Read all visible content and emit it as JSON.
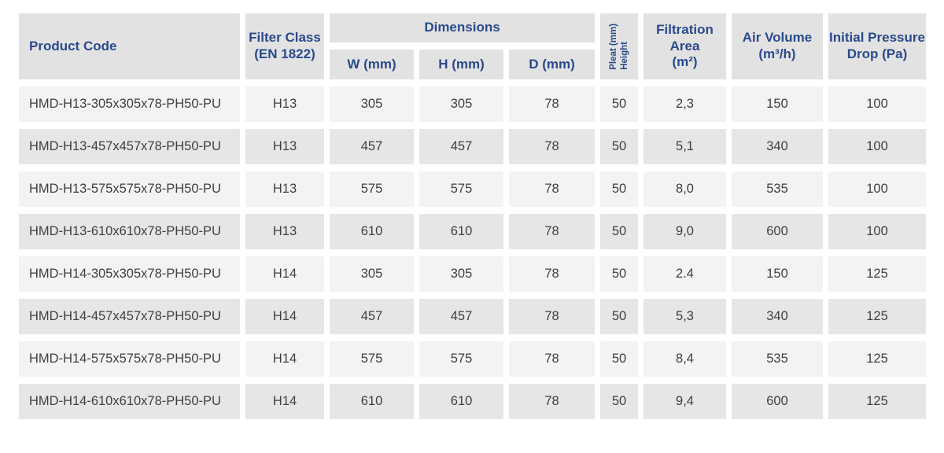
{
  "table": {
    "header": {
      "product_code": "Product Code",
      "filter_class_lines": [
        "Filter Class",
        "(EN 1822)"
      ],
      "dimensions_group": "Dimensions",
      "dim_w": "W (mm)",
      "dim_h": "H (mm)",
      "dim_d": "D (mm)",
      "pleat_lines": [
        "Pleat (mm)",
        "Height"
      ],
      "filtration_area_lines": [
        "Filtration",
        "Area",
        "(m²)"
      ],
      "air_volume_lines": [
        "Air Volume",
        "(m³/h)"
      ],
      "initial_pressure_lines": [
        "Initial Pressure",
        "Drop (Pa)"
      ]
    },
    "rows": [
      {
        "product_code": "HMD-H13-305x305x78-PH50-PU",
        "filter_class": "H13",
        "w": "305",
        "h": "305",
        "d": "78",
        "pleat_height": "50",
        "filtration_area": "2,3",
        "air_volume": "150",
        "initial_pressure_drop": "100"
      },
      {
        "product_code": "HMD-H13-457x457x78-PH50-PU",
        "filter_class": "H13",
        "w": "457",
        "h": "457",
        "d": "78",
        "pleat_height": "50",
        "filtration_area": "5,1",
        "air_volume": "340",
        "initial_pressure_drop": "100"
      },
      {
        "product_code": "HMD-H13-575x575x78-PH50-PU",
        "filter_class": "H13",
        "w": "575",
        "h": "575",
        "d": "78",
        "pleat_height": "50",
        "filtration_area": "8,0",
        "air_volume": "535",
        "initial_pressure_drop": "100"
      },
      {
        "product_code": "HMD-H13-610x610x78-PH50-PU",
        "filter_class": "H13",
        "w": "610",
        "h": "610",
        "d": "78",
        "pleat_height": "50",
        "filtration_area": "9,0",
        "air_volume": "600",
        "initial_pressure_drop": "100"
      },
      {
        "product_code": "HMD-H14-305x305x78-PH50-PU",
        "filter_class": "H14",
        "w": "305",
        "h": "305",
        "d": "78",
        "pleat_height": "50",
        "filtration_area": "2.4",
        "air_volume": "150",
        "initial_pressure_drop": "125"
      },
      {
        "product_code": "HMD-H14-457x457x78-PH50-PU",
        "filter_class": "H14",
        "w": "457",
        "h": "457",
        "d": "78",
        "pleat_height": "50",
        "filtration_area": "5,3",
        "air_volume": "340",
        "initial_pressure_drop": "125"
      },
      {
        "product_code": "HMD-H14-575x575x78-PH50-PU",
        "filter_class": "H14",
        "w": "575",
        "h": "575",
        "d": "78",
        "pleat_height": "50",
        "filtration_area": "8,4",
        "air_volume": "535",
        "initial_pressure_drop": "125"
      },
      {
        "product_code": "HMD-H14-610x610x78-PH50-PU",
        "filter_class": "H14",
        "w": "610",
        "h": "610",
        "d": "78",
        "pleat_height": "50",
        "filtration_area": "9,4",
        "air_volume": "600",
        "initial_pressure_drop": "125"
      }
    ]
  },
  "colors": {
    "header_text": "#2a4a8b",
    "header_bg": "#e2e2e2",
    "row_light_bg": "#f3f3f3",
    "row_dark_bg": "#e6e6e6",
    "cell_text": "#3f3f3f"
  }
}
